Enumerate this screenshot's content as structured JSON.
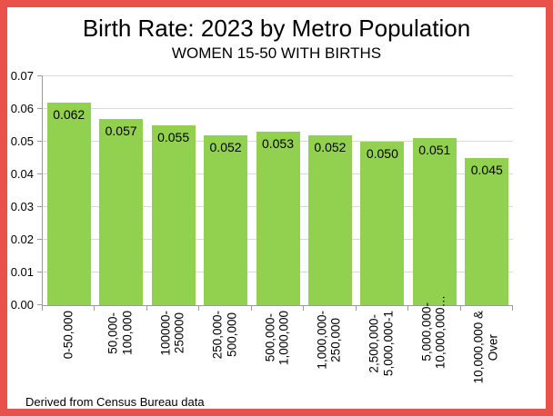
{
  "header": {
    "title": "Birth Rate: 2023 by Metro Population",
    "subtitle": "WOMEN 15-50 WITH BIRTHS"
  },
  "footer": {
    "note": "Derived from Census Bureau data"
  },
  "colors": {
    "frame": "#e8524a",
    "bar": "#92d050",
    "gridline": "#d9d9d9",
    "axis": "#9b9b9b",
    "text": "#000000",
    "background": "#ffffff"
  },
  "chart_data": {
    "type": "bar",
    "title": "Birth Rate: 2023 by Metro Population",
    "subtitle": "WOMEN 15-50 WITH BIRTHS",
    "categories": [
      "0-50,000",
      "50,000-\n100,000",
      "100000-\n250000",
      "250,000-\n500,000",
      "500,000-\n1,000,000",
      "1,000,000-\n250,000",
      "2,500,000-\n5,000,000-1",
      "5,000,000-\n10,000,000…",
      "10,000,000 &\nOver"
    ],
    "values": [
      0.062,
      0.057,
      0.055,
      0.052,
      0.053,
      0.052,
      0.05,
      0.051,
      0.045
    ],
    "data_labels": [
      "0.062",
      "0.057",
      "0.055",
      "0.052",
      "0.053",
      "0.052",
      "0.050",
      "0.051",
      "0.045"
    ],
    "xlabel": "",
    "ylabel": "",
    "ylim": [
      0,
      0.07
    ],
    "ytick_step": 0.01,
    "yticks": [
      "0.00",
      "0.01",
      "0.02",
      "0.03",
      "0.04",
      "0.05",
      "0.06",
      "0.07"
    ],
    "grid": true,
    "legend": null,
    "source_note": "Derived from Census Bureau data"
  }
}
